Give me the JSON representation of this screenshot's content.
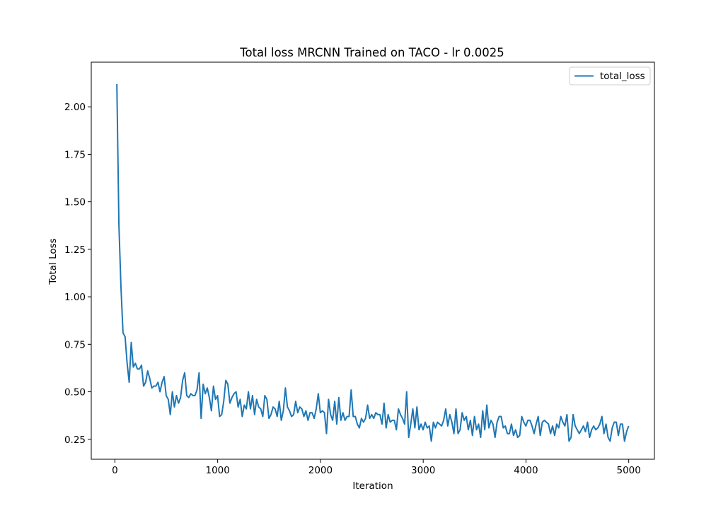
{
  "chart_data": {
    "type": "line",
    "title": "Total loss MRCNN Trained on TACO - lr 0.0025",
    "xlabel": "Iteration",
    "ylabel": "Total Loss",
    "xlim": [
      -230,
      5250
    ],
    "ylim": [
      0.145,
      2.235
    ],
    "xticks": [
      0,
      1000,
      2000,
      3000,
      4000,
      5000
    ],
    "xtick_labels": [
      "0",
      "1000",
      "2000",
      "3000",
      "4000",
      "5000"
    ],
    "yticks": [
      0.25,
      0.5,
      0.75,
      1.0,
      1.25,
      1.5,
      1.75,
      2.0
    ],
    "ytick_labels": [
      "0.25",
      "0.50",
      "0.75",
      "1.00",
      "1.25",
      "1.50",
      "1.75",
      "2.00"
    ],
    "grid": false,
    "legend": {
      "placement": "top-right",
      "entries": [
        "total_loss"
      ]
    },
    "series": [
      {
        "name": "total_loss",
        "color": "#1f77b4",
        "x_start": 19,
        "x_step": 20,
        "values": [
          2.12,
          1.38,
          1.05,
          0.81,
          0.79,
          0.65,
          0.55,
          0.76,
          0.63,
          0.65,
          0.62,
          0.62,
          0.64,
          0.53,
          0.55,
          0.61,
          0.57,
          0.52,
          0.53,
          0.53,
          0.55,
          0.5,
          0.55,
          0.58,
          0.48,
          0.46,
          0.38,
          0.5,
          0.42,
          0.48,
          0.44,
          0.47,
          0.56,
          0.6,
          0.48,
          0.47,
          0.49,
          0.48,
          0.48,
          0.51,
          0.6,
          0.36,
          0.54,
          0.49,
          0.52,
          0.47,
          0.4,
          0.53,
          0.46,
          0.48,
          0.37,
          0.38,
          0.45,
          0.56,
          0.54,
          0.44,
          0.47,
          0.49,
          0.5,
          0.42,
          0.46,
          0.37,
          0.43,
          0.41,
          0.5,
          0.41,
          0.48,
          0.38,
          0.46,
          0.42,
          0.41,
          0.37,
          0.48,
          0.46,
          0.36,
          0.38,
          0.42,
          0.41,
          0.37,
          0.45,
          0.35,
          0.4,
          0.52,
          0.42,
          0.4,
          0.37,
          0.38,
          0.45,
          0.39,
          0.42,
          0.41,
          0.37,
          0.4,
          0.35,
          0.39,
          0.39,
          0.36,
          0.41,
          0.49,
          0.39,
          0.4,
          0.39,
          0.28,
          0.46,
          0.38,
          0.35,
          0.45,
          0.33,
          0.47,
          0.35,
          0.39,
          0.35,
          0.37,
          0.37,
          0.51,
          0.37,
          0.37,
          0.33,
          0.31,
          0.36,
          0.34,
          0.36,
          0.43,
          0.36,
          0.38,
          0.36,
          0.39,
          0.38,
          0.38,
          0.33,
          0.44,
          0.31,
          0.38,
          0.34,
          0.35,
          0.35,
          0.3,
          0.41,
          0.38,
          0.36,
          0.33,
          0.5,
          0.26,
          0.33,
          0.41,
          0.31,
          0.42,
          0.3,
          0.33,
          0.3,
          0.34,
          0.31,
          0.32,
          0.24,
          0.34,
          0.31,
          0.34,
          0.33,
          0.32,
          0.35,
          0.41,
          0.32,
          0.38,
          0.34,
          0.28,
          0.41,
          0.28,
          0.3,
          0.39,
          0.35,
          0.37,
          0.3,
          0.35,
          0.27,
          0.37,
          0.3,
          0.33,
          0.26,
          0.4,
          0.3,
          0.43,
          0.31,
          0.35,
          0.33,
          0.26,
          0.34,
          0.37,
          0.37,
          0.31,
          0.32,
          0.28,
          0.28,
          0.33,
          0.27,
          0.3,
          0.26,
          0.27,
          0.37,
          0.34,
          0.32,
          0.35,
          0.35,
          0.32,
          0.28,
          0.33,
          0.37,
          0.27,
          0.34,
          0.35,
          0.34,
          0.33,
          0.28,
          0.32,
          0.27,
          0.33,
          0.31,
          0.37,
          0.34,
          0.32,
          0.38,
          0.24,
          0.26,
          0.38,
          0.32,
          0.3,
          0.28,
          0.3,
          0.32,
          0.29,
          0.34,
          0.26,
          0.3,
          0.32,
          0.3,
          0.31,
          0.33,
          0.37,
          0.28,
          0.33,
          0.26,
          0.24,
          0.31,
          0.34,
          0.34,
          0.27,
          0.33,
          0.33,
          0.24,
          0.29,
          0.32
        ]
      }
    ]
  }
}
